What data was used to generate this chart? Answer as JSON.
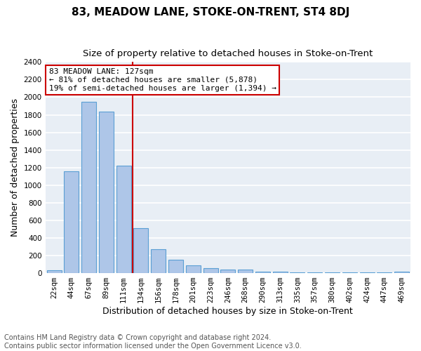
{
  "title": "83, MEADOW LANE, STOKE-ON-TRENT, ST4 8DJ",
  "subtitle": "Size of property relative to detached houses in Stoke-on-Trent",
  "xlabel": "Distribution of detached houses by size in Stoke-on-Trent",
  "ylabel": "Number of detached properties",
  "categories": [
    "22sqm",
    "44sqm",
    "67sqm",
    "89sqm",
    "111sqm",
    "134sqm",
    "156sqm",
    "178sqm",
    "201sqm",
    "223sqm",
    "246sqm",
    "268sqm",
    "290sqm",
    "313sqm",
    "335sqm",
    "357sqm",
    "380sqm",
    "402sqm",
    "424sqm",
    "447sqm",
    "469sqm"
  ],
  "values": [
    30,
    1160,
    1950,
    1840,
    1220,
    510,
    270,
    155,
    85,
    55,
    40,
    40,
    20,
    15,
    10,
    8,
    5,
    5,
    5,
    5,
    20
  ],
  "bar_color": "#aec6e8",
  "bar_edge_color": "#5a9fd4",
  "vline_color": "#cc0000",
  "ylim": [
    0,
    2400
  ],
  "yticks": [
    0,
    200,
    400,
    600,
    800,
    1000,
    1200,
    1400,
    1600,
    1800,
    2000,
    2200,
    2400
  ],
  "annotation_title": "83 MEADOW LANE: 127sqm",
  "annotation_line1": "← 81% of detached houses are smaller (5,878)",
  "annotation_line2": "19% of semi-detached houses are larger (1,394) →",
  "annotation_box_color": "#ffffff",
  "annotation_box_edge": "#cc0000",
  "footer_line1": "Contains HM Land Registry data © Crown copyright and database right 2024.",
  "footer_line2": "Contains public sector information licensed under the Open Government Licence v3.0.",
  "background_color": "#e8eef5",
  "grid_color": "#ffffff",
  "fig_background": "#ffffff",
  "title_fontsize": 11,
  "subtitle_fontsize": 9.5,
  "tick_fontsize": 7.5,
  "ylabel_fontsize": 9,
  "xlabel_fontsize": 9,
  "footer_fontsize": 7,
  "annotation_fontsize": 8
}
